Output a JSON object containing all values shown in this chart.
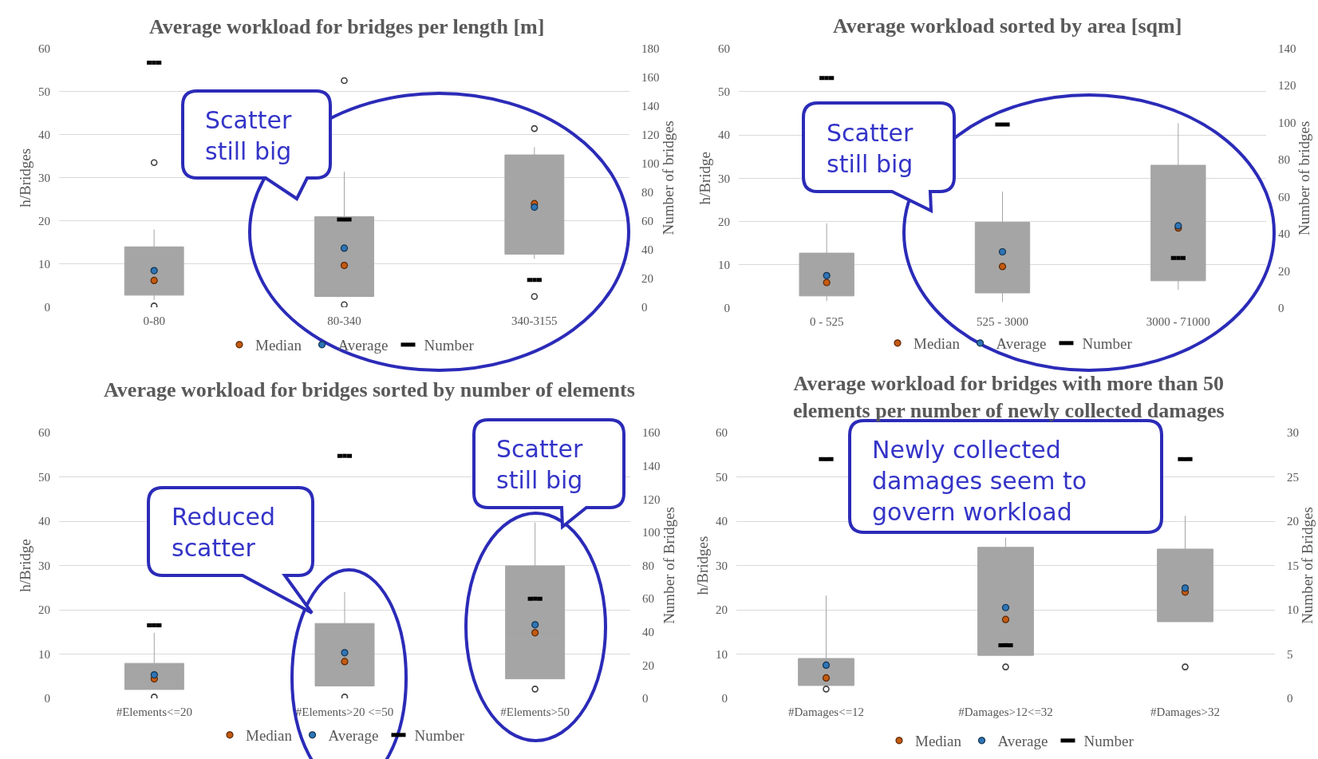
{
  "chart_data": [
    {
      "type": "box",
      "title": "Average workload for bridges per length [m]",
      "ylabel": "h/Bridges",
      "y2label": "Number of bridges",
      "categories": [
        "0-80",
        "80-340",
        "340-3155"
      ],
      "ylim": [
        0,
        60
      ],
      "yticks": [
        0,
        10,
        20,
        30,
        40,
        50,
        60
      ],
      "y2lim": [
        0,
        180
      ],
      "y2ticks": [
        0,
        20,
        40,
        60,
        80,
        100,
        120,
        140,
        160,
        180
      ],
      "grid": "y",
      "legend": "bottom",
      "series": [
        {
          "type": "box",
          "color": "#a5a5a5",
          "boxes": [
            {
              "low": 1.7,
              "q1": 2.8,
              "median": 6.2,
              "q3": 14,
              "high": 18,
              "outliers": [
                33.5,
                0.3
              ]
            },
            {
              "low": 2.5,
              "q1": 2.5,
              "median": 9.7,
              "q3": 21,
              "high": 31.4,
              "outliers": [
                52.5,
                0.6
              ]
            },
            {
              "low": 11.2,
              "q1": 12.3,
              "median": 24,
              "q3": 35.3,
              "high": 37.1,
              "outliers": [
                41.4,
                2.5
              ]
            }
          ]
        },
        {
          "name": "Median",
          "type": "scatter",
          "marker": "circle",
          "color": "#c55a11",
          "values": [
            6.2,
            9.7,
            24
          ]
        },
        {
          "name": "Average",
          "type": "scatter",
          "marker": "circle",
          "color": "#2e75b6",
          "values": [
            8.5,
            13.7,
            23.2
          ]
        },
        {
          "name": "Number",
          "type": "scatter",
          "color": "#000000",
          "axis": "y2",
          "values": [
            170,
            61,
            19
          ]
        }
      ],
      "annotations": [
        "Scatter\nstill big"
      ]
    },
    {
      "type": "box",
      "title": "Average workload sorted by area [sqm]",
      "ylabel": "h/Bridge",
      "y2label": "Number of bridges",
      "categories": [
        "0 - 525",
        "525 - 3000",
        "3000 - 71000"
      ],
      "ylim": [
        0,
        60
      ],
      "yticks": [
        0,
        10,
        20,
        30,
        40,
        50,
        60
      ],
      "y2lim": [
        0,
        140
      ],
      "y2ticks": [
        0,
        20,
        40,
        60,
        80,
        100,
        120,
        140
      ],
      "grid": "y",
      "legend": "bottom",
      "series": [
        {
          "type": "box",
          "color": "#a5a5a5",
          "boxes": [
            {
              "low": 1.6,
              "q1": 2.8,
              "median": 5.9,
              "q3": 12.7,
              "high": 19.6
            },
            {
              "low": 1.4,
              "q1": 3.5,
              "median": 9.6,
              "q3": 19.8,
              "high": 26.9
            },
            {
              "low": 4.2,
              "q1": 6.3,
              "median": 18.5,
              "q3": 33,
              "high": 42.7
            }
          ]
        },
        {
          "name": "Median",
          "type": "scatter",
          "marker": "circle",
          "color": "#c55a11",
          "values": [
            5.9,
            9.6,
            18.5
          ]
        },
        {
          "name": "Average",
          "type": "scatter",
          "marker": "circle",
          "color": "#2e75b6",
          "values": [
            7.5,
            13,
            19
          ]
        },
        {
          "name": "Number",
          "type": "scatter",
          "color": "#000000",
          "axis": "y2",
          "values": [
            124,
            99,
            27
          ]
        }
      ],
      "annotations": [
        "Scatter\nstill big"
      ]
    },
    {
      "type": "box",
      "title": "Average workload for bridges sorted by number of elements",
      "ylabel": "h/Bridge",
      "y2label": "Number of Bridges",
      "categories": [
        "#Elements<=20",
        "#Elements>20 <=50",
        "#Elements>50"
      ],
      "ylim": [
        0,
        60
      ],
      "yticks": [
        0,
        10,
        20,
        30,
        40,
        50,
        60
      ],
      "y2lim": [
        0,
        160
      ],
      "y2ticks": [
        0,
        20,
        40,
        60,
        80,
        100,
        120,
        140,
        160
      ],
      "grid": "y",
      "legend": "bottom",
      "series": [
        {
          "type": "box",
          "color": "#a5a5a5",
          "boxes": [
            {
              "low": 2,
              "q1": 2,
              "median": 4.4,
              "q3": 7.9,
              "high": 14.8,
              "outliers": [
                0.3
              ]
            },
            {
              "low": 2.8,
              "q1": 2.8,
              "median": 8.3,
              "q3": 16.9,
              "high": 24,
              "outliers": [
                0.3
              ]
            },
            {
              "low": 4.4,
              "q1": 4.4,
              "median": 14.8,
              "q3": 29.9,
              "high": 39.7,
              "outliers": [
                2.1
              ]
            }
          ]
        },
        {
          "name": "Median",
          "type": "scatter",
          "marker": "circle",
          "color": "#c55a11",
          "values": [
            4.4,
            8.3,
            14.8
          ]
        },
        {
          "name": "Average",
          "type": "scatter",
          "marker": "circle",
          "color": "#2e75b6",
          "values": [
            5.3,
            10.3,
            16.6
          ]
        },
        {
          "name": "Number",
          "type": "scatter",
          "color": "#000000",
          "axis": "y2",
          "values": [
            44,
            146,
            60
          ]
        }
      ],
      "annotations": [
        "Reduced\nscatter",
        "Scatter\nstill big"
      ]
    },
    {
      "type": "box",
      "title": "Average workload for bridges with more than 50\nelements per number of newly collected damages",
      "ylabel": "h/Bridges",
      "y2label": "Number of Bridges",
      "categories": [
        "#Damages<=12",
        "#Damages>12<=32",
        "#Damages>32"
      ],
      "ylim": [
        0,
        60
      ],
      "yticks": [
        0,
        10,
        20,
        30,
        40,
        50,
        60
      ],
      "y2lim": [
        0,
        30
      ],
      "y2ticks": [
        0,
        5,
        10,
        15,
        20,
        25,
        30
      ],
      "grid": "y",
      "legend": "bottom",
      "series": [
        {
          "type": "box",
          "color": "#a5a5a5",
          "boxes": [
            {
              "low": 2.9,
              "q1": 2.9,
              "median": 4.6,
              "q3": 9,
              "high": 23.2,
              "outliers": [
                2.1
              ]
            },
            {
              "low": 9.7,
              "q1": 9.7,
              "median": 17.8,
              "q3": 34.1,
              "high": 36.3,
              "outliers": [
                7.1
              ]
            },
            {
              "low": 17.3,
              "q1": 17.3,
              "median": 24,
              "q3": 33.7,
              "high": 41.2,
              "outliers": [
                7.1
              ]
            }
          ]
        },
        {
          "name": "Median",
          "type": "scatter",
          "marker": "circle",
          "color": "#c55a11",
          "values": [
            4.6,
            17.8,
            24
          ]
        },
        {
          "name": "Average",
          "type": "scatter",
          "marker": "circle",
          "color": "#2e75b6",
          "values": [
            7.5,
            20.5,
            24.9
          ]
        },
        {
          "name": "Number",
          "type": "scatter",
          "color": "#000000",
          "axis": "y2",
          "values": [
            27,
            6,
            27
          ]
        }
      ],
      "annotations": [
        "Newly collected\ndamages seem to\ngovern workload"
      ]
    }
  ]
}
